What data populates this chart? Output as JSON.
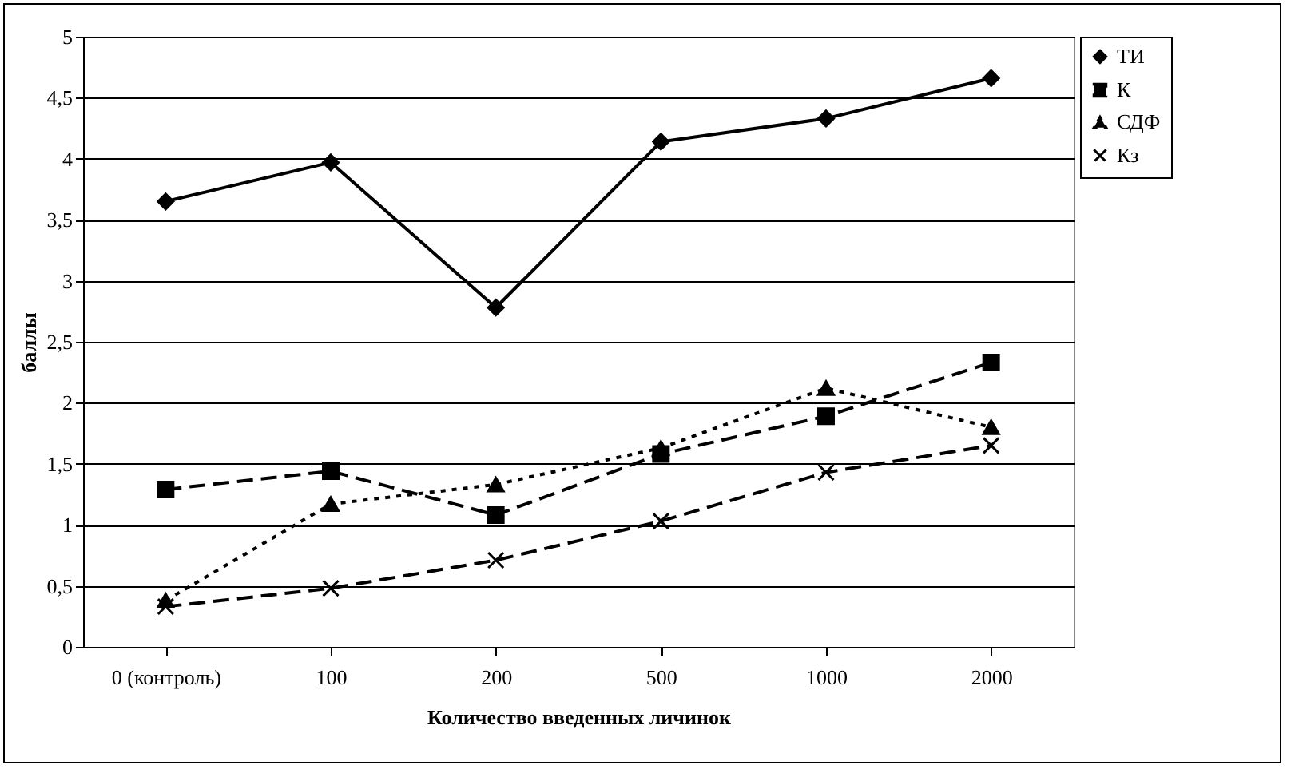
{
  "chart_data": {
    "type": "line",
    "xlabel": "Количество введенных личинок",
    "ylabel": "баллы",
    "categories": [
      "0 (контроль)",
      "100",
      "200",
      "500",
      "1000",
      "2000"
    ],
    "ylim": [
      0,
      5
    ],
    "yticks": [
      0,
      {
        "value": 0.5,
        "label": "0,5"
      },
      1,
      {
        "value": 1.5,
        "label": "1,5"
      },
      2,
      {
        "value": 2.5,
        "label": "2,5"
      },
      3,
      {
        "value": 3.5,
        "label": "3,5"
      },
      4,
      {
        "value": 4.5,
        "label": "4,5"
      },
      5
    ],
    "grid": "y",
    "legend": "right",
    "series": [
      {
        "name": "ТИ",
        "color": "#000000",
        "marker": "diamond",
        "line_style": "solid",
        "values": [
          3.65,
          3.97,
          2.78,
          4.14,
          4.33,
          4.66
        ]
      },
      {
        "name": "К",
        "color": "#000000",
        "marker": "square",
        "line_style": "dashed",
        "values": [
          1.29,
          1.44,
          1.08,
          1.58,
          1.89,
          2.33
        ]
      },
      {
        "name": "СДФ",
        "color": "#000000",
        "marker": "triangle",
        "line_style": "dotted",
        "values": [
          0.38,
          1.17,
          1.33,
          1.63,
          2.12,
          1.8
        ]
      },
      {
        "name": "Кз",
        "color": "#000000",
        "marker": "cross",
        "line_style": "dashed",
        "values": [
          0.33,
          0.48,
          0.71,
          1.03,
          1.43,
          1.65
        ]
      }
    ]
  }
}
